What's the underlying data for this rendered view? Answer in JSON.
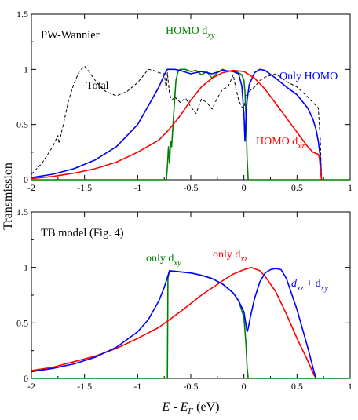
{
  "chart_data": [
    {
      "type": "line",
      "panel_title": "PW-Wannier",
      "xlim": [
        -2,
        1
      ],
      "ylim": [
        0,
        1.5
      ],
      "xticks": [
        "-2",
        "-1.5",
        "-1",
        "-0.5",
        "0",
        "0.5",
        "1"
      ],
      "yticks": [
        "0",
        "0.5",
        "1",
        "1.5"
      ],
      "series": [
        {
          "name": "Total",
          "color": "#000000",
          "style": "dashed",
          "x": [
            -2.0,
            -1.9,
            -1.8,
            -1.75,
            -1.74,
            -1.7,
            -1.65,
            -1.6,
            -1.55,
            -1.5,
            -1.45,
            -1.4,
            -1.35,
            -1.3,
            -1.25,
            -1.2,
            -1.1,
            -1.0,
            -0.95,
            -0.9,
            -0.85,
            -0.8,
            -0.75,
            -0.73,
            -0.72,
            -0.7,
            -0.68,
            -0.65,
            -0.6,
            -0.55,
            -0.5,
            -0.45,
            -0.4,
            -0.35,
            -0.3,
            -0.25,
            -0.2,
            -0.15,
            -0.1,
            -0.08,
            -0.05,
            -0.02,
            0.0,
            0.02,
            0.05,
            0.1,
            0.15,
            0.2,
            0.3,
            0.4,
            0.5,
            0.6,
            0.65,
            0.7,
            0.72,
            0.73
          ],
          "y": [
            0.05,
            0.15,
            0.3,
            0.4,
            0.33,
            0.5,
            0.72,
            0.87,
            0.98,
            1.03,
            0.97,
            0.9,
            0.84,
            0.8,
            0.78,
            0.76,
            0.8,
            0.88,
            0.94,
            1.0,
            0.99,
            0.97,
            0.96,
            0.82,
            0.97,
            0.78,
            0.72,
            0.75,
            0.7,
            0.74,
            0.66,
            0.6,
            0.73,
            0.7,
            0.64,
            0.74,
            0.82,
            0.84,
            0.95,
            0.85,
            0.72,
            0.66,
            0.65,
            0.76,
            0.8,
            0.84,
            0.9,
            0.93,
            0.96,
            0.89,
            0.84,
            0.75,
            0.7,
            0.65,
            0.35,
            0.0
          ]
        },
        {
          "name": "HOMO dxy",
          "color": "#008000",
          "style": "solid",
          "x": [
            -2.0,
            -0.8,
            -0.73,
            -0.72,
            -0.71,
            -0.7,
            -0.69,
            -0.68,
            -0.66,
            -0.64,
            -0.62,
            -0.6,
            -0.55,
            -0.5,
            -0.45,
            -0.4,
            -0.35,
            -0.3,
            -0.25,
            -0.2,
            -0.15,
            -0.1,
            -0.05,
            -0.02,
            0.0,
            0.01,
            0.02,
            0.03,
            0.04,
            1.0
          ],
          "y": [
            0,
            0,
            0,
            0.12,
            0.3,
            0.15,
            0.35,
            0.3,
            0.6,
            0.9,
            0.98,
            1.0,
            1.0,
            0.98,
            0.99,
            0.95,
            0.98,
            0.92,
            0.97,
            1.0,
            0.98,
            0.99,
            0.97,
            0.95,
            0.9,
            0.8,
            0.55,
            0.2,
            0.0,
            0.0
          ]
        },
        {
          "name": "Only HOMO",
          "color": "#0000ff",
          "style": "solid",
          "x": [
            -2.0,
            -1.8,
            -1.6,
            -1.4,
            -1.2,
            -1.0,
            -0.9,
            -0.8,
            -0.75,
            -0.72,
            -0.7,
            -0.65,
            -0.6,
            -0.5,
            -0.4,
            -0.3,
            -0.2,
            -0.1,
            -0.05,
            -0.02,
            0.0,
            0.01,
            0.02,
            0.03,
            0.05,
            0.1,
            0.15,
            0.2,
            0.3,
            0.4,
            0.5,
            0.6,
            0.65,
            0.68,
            0.7,
            0.72,
            0.73
          ],
          "y": [
            0.02,
            0.05,
            0.1,
            0.18,
            0.3,
            0.5,
            0.67,
            0.84,
            0.95,
            1.0,
            1.0,
            1.0,
            0.99,
            0.96,
            0.98,
            0.96,
            0.99,
            0.98,
            0.96,
            0.85,
            0.6,
            0.35,
            0.58,
            0.72,
            0.86,
            0.97,
            1.0,
            0.99,
            0.92,
            0.84,
            0.77,
            0.65,
            0.55,
            0.45,
            0.35,
            0.2,
            0.0
          ]
        },
        {
          "name": "HOMO dxz",
          "color": "#ff0000",
          "style": "solid",
          "x": [
            -2.0,
            -1.8,
            -1.6,
            -1.4,
            -1.2,
            -1.0,
            -0.8,
            -0.7,
            -0.6,
            -0.5,
            -0.4,
            -0.3,
            -0.2,
            -0.1,
            0.0,
            0.1,
            0.2,
            0.3,
            0.4,
            0.5,
            0.6,
            0.65,
            0.7,
            0.71,
            0.72,
            0.73
          ],
          "y": [
            0.01,
            0.03,
            0.06,
            0.1,
            0.16,
            0.25,
            0.36,
            0.46,
            0.58,
            0.72,
            0.84,
            0.92,
            0.97,
            0.99,
            0.98,
            0.92,
            0.82,
            0.69,
            0.56,
            0.43,
            0.3,
            0.25,
            0.23,
            0.2,
            0.1,
            0.0
          ]
        }
      ],
      "annotations": [
        {
          "base": "Total",
          "sub": "",
          "color": "#000000"
        },
        {
          "base": "HOMO d",
          "sub": "xy",
          "color": "#008000"
        },
        {
          "base": "Only HOMO",
          "sub": "",
          "color": "#0000ff"
        },
        {
          "base": "HOMO d",
          "sub": "xz",
          "color": "#ff0000"
        }
      ]
    },
    {
      "type": "line",
      "panel_title": "TB model (Fig. 4)",
      "xlim": [
        -2,
        1
      ],
      "ylim": [
        0,
        1.5
      ],
      "xticks": [
        "-2",
        "-1.5",
        "-1",
        "-0.5",
        "0",
        "0.5",
        "1"
      ],
      "yticks": [
        "0",
        "0.5",
        "1",
        "1.5"
      ],
      "xlabel": "E - E_F (eV)",
      "series": [
        {
          "name": "only dxy",
          "color": "#008000",
          "style": "solid",
          "x": [
            -2.0,
            -0.72,
            -0.715,
            -0.7,
            -0.6,
            -0.5,
            -0.4,
            -0.3,
            -0.2,
            -0.1,
            -0.05,
            0.0,
            0.02,
            0.03,
            0.04,
            1.0
          ],
          "y": [
            0,
            0,
            0.9,
            0.97,
            0.96,
            0.95,
            0.93,
            0.9,
            0.85,
            0.77,
            0.7,
            0.55,
            0.3,
            0.1,
            0.0,
            0.0
          ]
        },
        {
          "name": "only dxz",
          "color": "#ff0000",
          "style": "solid",
          "x": [
            -2.0,
            -1.8,
            -1.6,
            -1.4,
            -1.2,
            -1.0,
            -0.8,
            -0.6,
            -0.4,
            -0.2,
            -0.1,
            0.0,
            0.07,
            0.15,
            0.2,
            0.3,
            0.4,
            0.5,
            0.6,
            0.66,
            0.68
          ],
          "y": [
            0.07,
            0.1,
            0.15,
            0.2,
            0.27,
            0.36,
            0.46,
            0.6,
            0.75,
            0.88,
            0.94,
            0.98,
            1.0,
            0.97,
            0.92,
            0.78,
            0.58,
            0.36,
            0.16,
            0.03,
            0.0
          ]
        },
        {
          "name": "dxz + dxy",
          "color": "#0000ff",
          "style": "solid",
          "x": [
            -2.0,
            -1.8,
            -1.6,
            -1.4,
            -1.2,
            -1.0,
            -0.9,
            -0.8,
            -0.75,
            -0.7,
            -0.6,
            -0.5,
            -0.4,
            -0.3,
            -0.2,
            -0.1,
            -0.05,
            0.0,
            0.02,
            0.03,
            0.04,
            0.06,
            0.1,
            0.15,
            0.2,
            0.25,
            0.3,
            0.35,
            0.4,
            0.5,
            0.6,
            0.66,
            0.68
          ],
          "y": [
            0.06,
            0.09,
            0.13,
            0.19,
            0.28,
            0.42,
            0.53,
            0.7,
            0.82,
            0.97,
            0.96,
            0.95,
            0.93,
            0.9,
            0.85,
            0.77,
            0.7,
            0.6,
            0.48,
            0.42,
            0.45,
            0.55,
            0.72,
            0.87,
            0.95,
            0.98,
            0.99,
            0.98,
            0.9,
            0.62,
            0.28,
            0.06,
            0.0
          ]
        }
      ],
      "annotations": [
        {
          "base": "only d",
          "sub": "xy",
          "color": "#008000"
        },
        {
          "base": "only d",
          "sub": "xz",
          "color": "#ff0000"
        },
        {
          "base": "d",
          "sub": "xz",
          "mid": " + d",
          "sub2": "xy",
          "color": "#0000ff"
        }
      ]
    }
  ],
  "shared_ylabel": "Transmission",
  "xlabel": {
    "base": "E",
    "mid": " - E",
    "sub": "F",
    "tail": " (eV)"
  }
}
